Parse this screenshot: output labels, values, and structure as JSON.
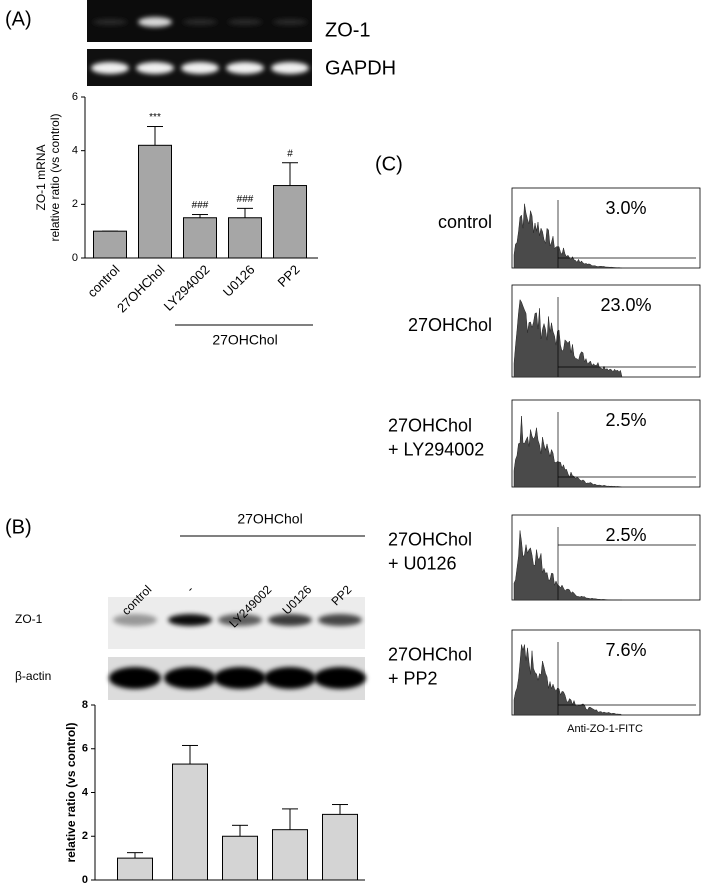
{
  "panel_labels": [
    "(A)",
    "(B)",
    "(C)"
  ],
  "gel_a": {
    "rows": [
      "ZO-1",
      "GAPDH"
    ]
  },
  "blot_b": {
    "treatment": "27OHChol",
    "lanes": [
      "control",
      "-",
      "LY249002",
      "U0126",
      "PP2"
    ],
    "rows": [
      "ZO-1",
      "β-actin"
    ]
  },
  "chart_data": [
    {
      "type": "bar",
      "categories": [
        "control",
        "27OHChol",
        "LY294002",
        "U0126",
        "PP2"
      ],
      "values": [
        1,
        4.2,
        1.5,
        1.5,
        2.7
      ],
      "errors": [
        0,
        0.7,
        0.12,
        0.35,
        0.85
      ],
      "value_annotations": [
        null,
        "***",
        "###",
        "###",
        "#"
      ],
      "ylim": [
        0,
        6
      ],
      "yticks": [
        0,
        2,
        4,
        6
      ],
      "y_label": [
        "ZO-1 mRNA",
        "relative ratio (vs control)"
      ],
      "group_label": "27OHChol",
      "color": "#a6a6a6"
    },
    {
      "type": "bar",
      "categories": [
        null,
        null,
        null,
        null,
        null
      ],
      "values": [
        1,
        5.3,
        2.0,
        2.3,
        3.0
      ],
      "errors": [
        0.25,
        0.85,
        0.5,
        0.95,
        0.45
      ],
      "ylim": [
        0,
        8
      ],
      "yticks": [
        0,
        2,
        4,
        6,
        8
      ],
      "y_label": [
        "relative ratio (vs control)"
      ],
      "color": "#d4d4d4"
    }
  ],
  "flow": {
    "samples": [
      {
        "label": [
          "control"
        ],
        "percent": "3.0%"
      },
      {
        "label": [
          "27OHChol"
        ],
        "percent": "23.0%"
      },
      {
        "label": [
          "27OHChol",
          "+ LY294002"
        ],
        "percent": "2.5%"
      },
      {
        "label": [
          "27OHChol",
          "+ U0126"
        ],
        "percent": "2.5%"
      },
      {
        "label": [
          "27OHChol",
          "+ PP2"
        ],
        "percent": "7.6%"
      }
    ],
    "x_label": "Anti-ZO-1-FITC"
  }
}
